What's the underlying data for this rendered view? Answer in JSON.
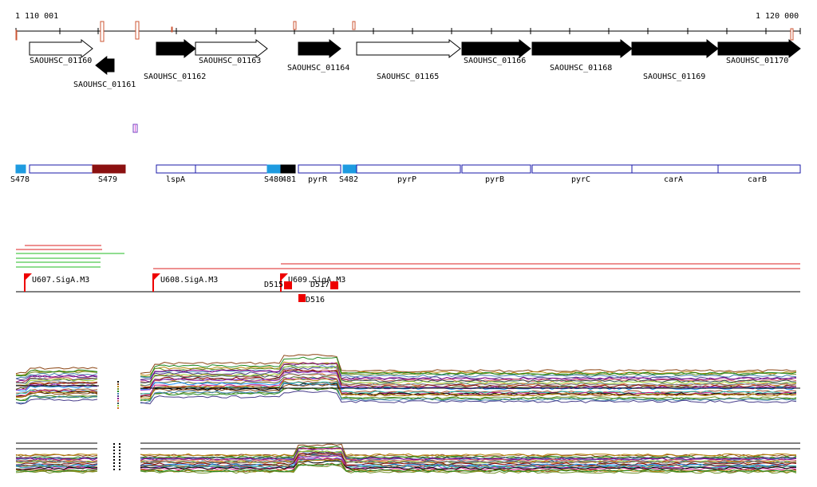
{
  "ruler": {
    "start_label": "1 110 001",
    "end_label": "1 120 000",
    "start_bp": 1110001,
    "end_bp": 1120000
  },
  "genes": [
    {
      "label": "SAOUHSC_01160",
      "strand": "+",
      "fill": "open"
    },
    {
      "label": "SAOUHSC_01161",
      "strand": "-",
      "fill": "solid"
    },
    {
      "label": "SAOUHSC_01162",
      "strand": "+",
      "fill": "solid"
    },
    {
      "label": "SAOUHSC_01163",
      "strand": "+",
      "fill": "open"
    },
    {
      "label": "SAOUHSC_01164",
      "strand": "+",
      "fill": "solid"
    },
    {
      "label": "SAOUHSC_01165",
      "strand": "+",
      "fill": "open"
    },
    {
      "label": "SAOUHSC_01166",
      "strand": "+",
      "fill": "solid"
    },
    {
      "label": "SAOUHSC_01168",
      "strand": "+",
      "fill": "solid"
    },
    {
      "label": "SAOUHSC_01169",
      "strand": "+",
      "fill": "solid"
    },
    {
      "label": "SAOUHSC_01170",
      "strand": "+",
      "fill": "solid"
    }
  ],
  "segments": [
    {
      "label": "S478",
      "color": "#1e9be0"
    },
    {
      "label": "",
      "color": "#ffffff"
    },
    {
      "label": "S479",
      "color": "#8b1010"
    },
    {
      "label": "lspA",
      "color": "#ffffff"
    },
    {
      "label": "",
      "color": "#ffffff"
    },
    {
      "label": "S480",
      "color": "#1e9be0"
    },
    {
      "label": "481",
      "color": "#000000"
    },
    {
      "label": "pyrR",
      "color": "#ffffff"
    },
    {
      "label": "S482",
      "color": "#1e9be0"
    },
    {
      "label": "pyrP",
      "color": "#ffffff"
    },
    {
      "label": "pyrB",
      "color": "#ffffff"
    },
    {
      "label": "pyrC",
      "color": "#ffffff"
    },
    {
      "label": "carA",
      "color": "#ffffff"
    },
    {
      "label": "carB",
      "color": "#ffffff"
    }
  ],
  "promoters": [
    {
      "label": "U607.SigA.M3"
    },
    {
      "label": "U608.SigA.M3"
    },
    {
      "label": "U609.SigA.M3"
    }
  ],
  "downstream_marks": [
    {
      "label": "D515"
    },
    {
      "label": "D516"
    },
    {
      "label": "D517"
    }
  ],
  "colors": {
    "gene_outline": "#000000",
    "segment_outline": "#1a1aa8",
    "promoter": "#ee0000",
    "reads_red": "#dd2222",
    "reads_green": "#22bb22",
    "feature_marker": "#cc5533"
  }
}
